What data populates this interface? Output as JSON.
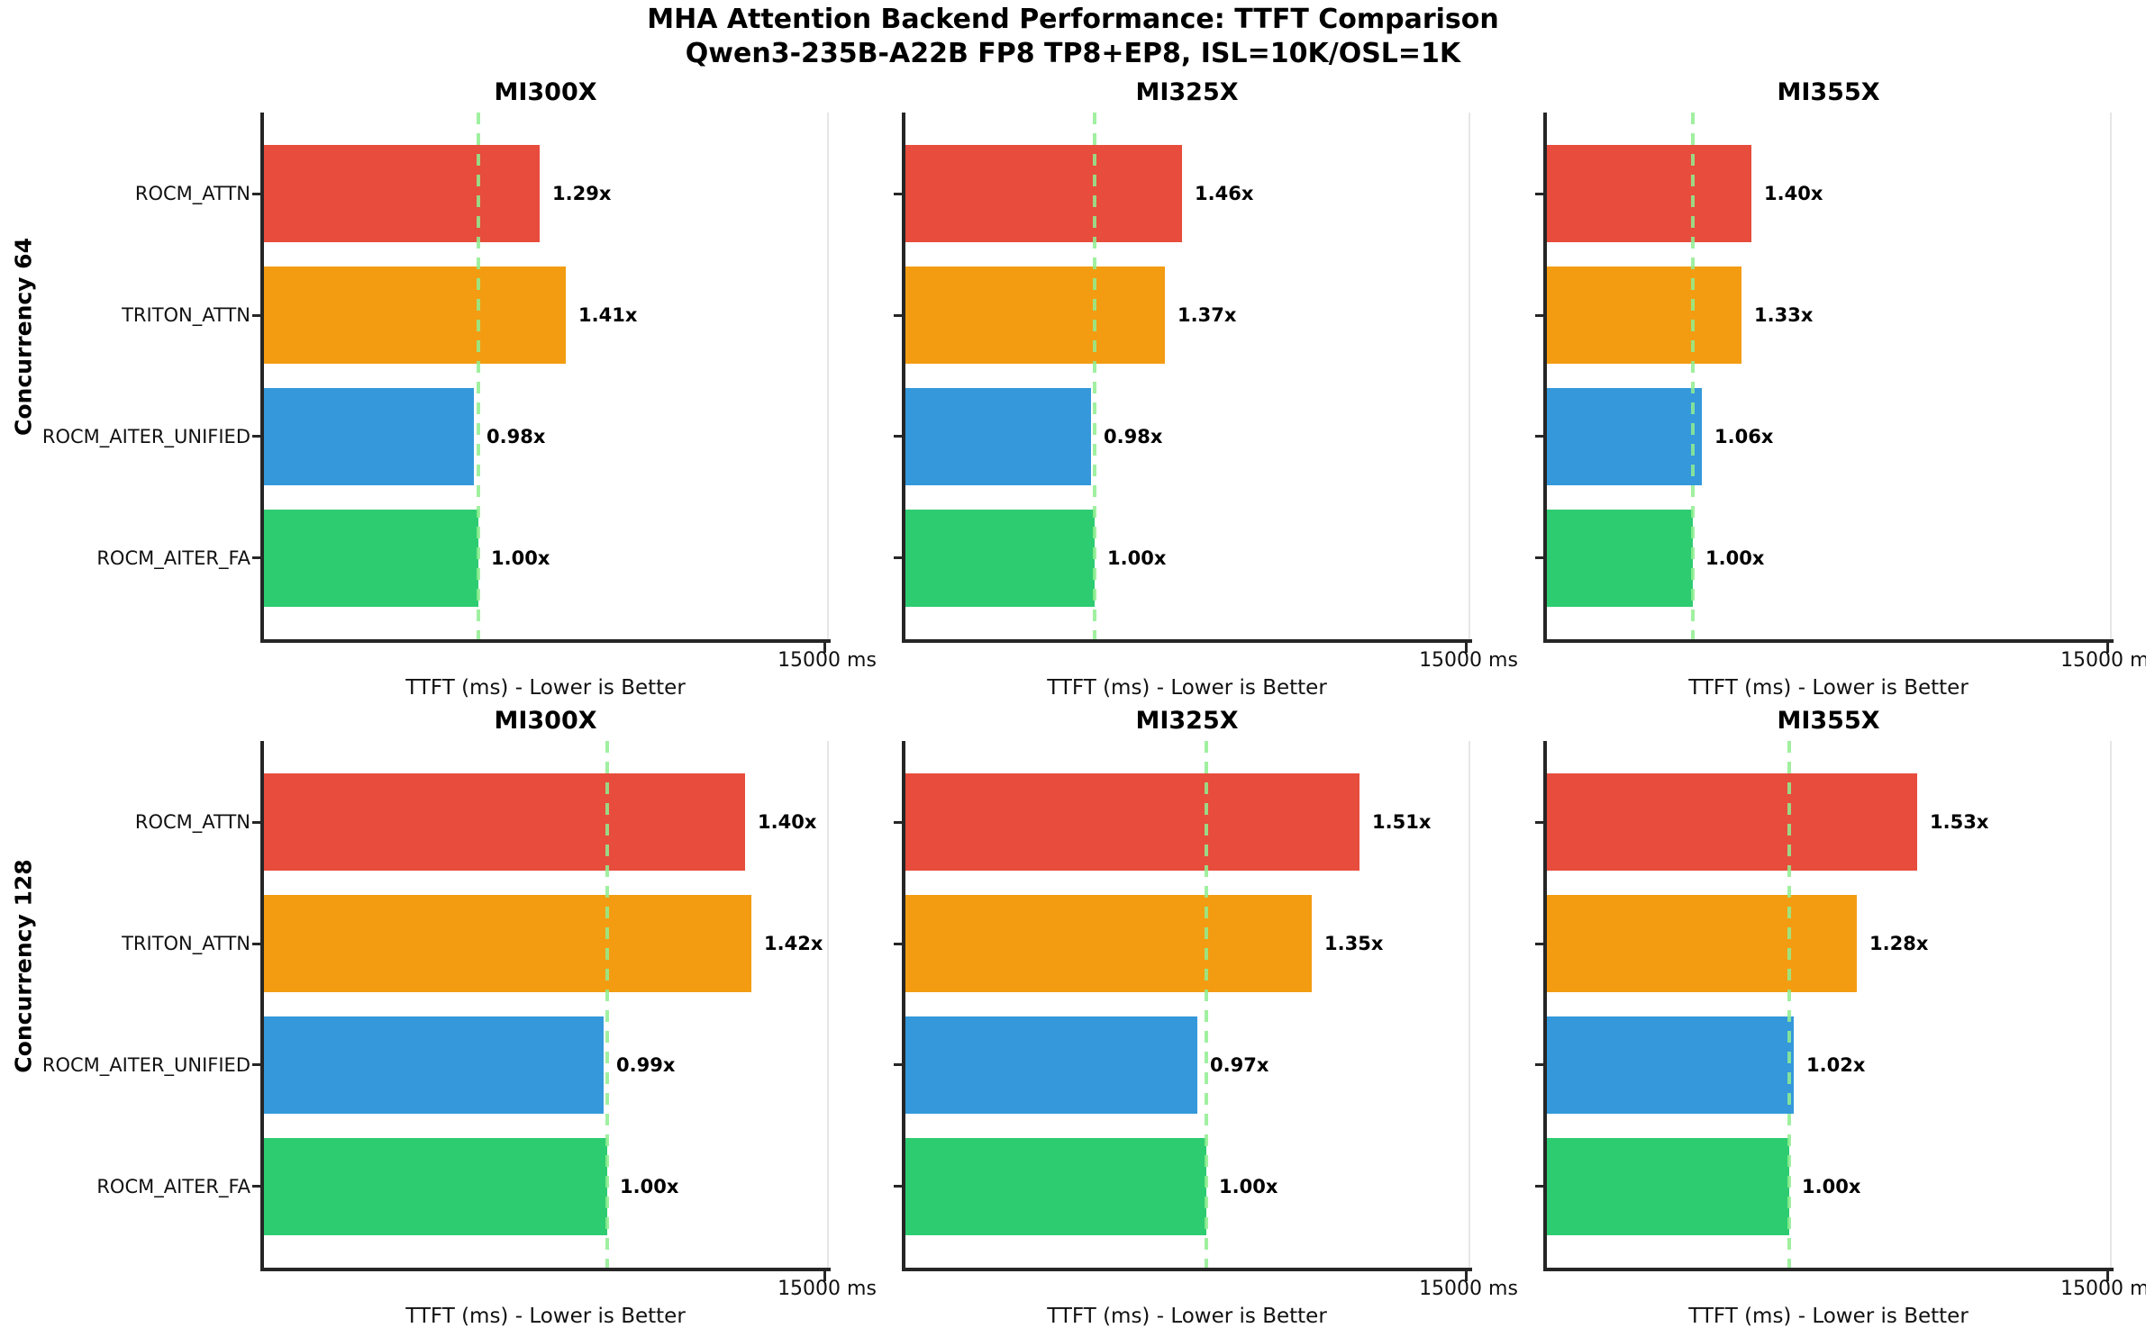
{
  "chart_data": {
    "type": "bar",
    "orientation": "horizontal",
    "title": "MHA Attention Backend Performance: TTFT Comparison",
    "subtitle": "Qwen3-235B-A22B FP8 TP8+EP8, ISL=10K/OSL=1K",
    "categories": [
      "ROCM_ATTN",
      "TRITON_ATTN",
      "ROCM_AITER_UNIFIED",
      "ROCM_AITER_FA"
    ],
    "bar_colors": [
      "#e74c3c",
      "#f39c12",
      "#3498db",
      "#2ecc71"
    ],
    "baseline_line_color": "#90ee90",
    "spine_color": "#262626",
    "xlabel": "TTFT (ms) - Lower is Better",
    "x_tick_label": "15000 ms",
    "xlim": [
      0,
      15000
    ],
    "grid": false,
    "legend": "none",
    "rows": [
      {
        "row_label": "Concurrency 64",
        "subplots": [
          {
            "title": "MI300X",
            "speedup_labels": [
              "1.29x",
              "1.41x",
              "0.98x",
              "1.00x"
            ],
            "speedups": [
              1.29,
              1.41,
              0.98,
              1.0
            ],
            "baseline_ttft_ms_est": 5700,
            "ttft_ms_est": [
              7350,
              8040,
              5590,
              5700
            ]
          },
          {
            "title": "MI325X",
            "speedup_labels": [
              "1.46x",
              "1.37x",
              "0.98x",
              "1.00x"
            ],
            "speedups": [
              1.46,
              1.37,
              0.98,
              1.0
            ],
            "baseline_ttft_ms_est": 5040,
            "ttft_ms_est": [
              7360,
              6900,
              4940,
              5040
            ]
          },
          {
            "title": "MI355X",
            "speedup_labels": [
              "1.40x",
              "1.33x",
              "1.06x",
              "1.00x"
            ],
            "speedups": [
              1.4,
              1.33,
              1.06,
              1.0
            ],
            "baseline_ttft_ms_est": 3890,
            "ttft_ms_est": [
              5440,
              5170,
              4120,
              3890
            ]
          }
        ]
      },
      {
        "row_label": "Concurrency 128",
        "subplots": [
          {
            "title": "MI300X",
            "speedup_labels": [
              "1.40x",
              "1.42x",
              "0.99x",
              "1.00x"
            ],
            "speedups": [
              1.4,
              1.42,
              0.99,
              1.0
            ],
            "baseline_ttft_ms_est": 9150,
            "ttft_ms_est": [
              12810,
              12990,
              9060,
              9150
            ]
          },
          {
            "title": "MI325X",
            "speedup_labels": [
              "1.51x",
              "1.35x",
              "0.97x",
              "1.00x"
            ],
            "speedups": [
              1.51,
              1.35,
              0.97,
              1.0
            ],
            "baseline_ttft_ms_est": 8010,
            "ttft_ms_est": [
              12100,
              10810,
              7770,
              8010
            ]
          },
          {
            "title": "MI355X",
            "speedup_labels": [
              "1.53x",
              "1.28x",
              "1.02x",
              "1.00x"
            ],
            "speedups": [
              1.53,
              1.28,
              1.02,
              1.0
            ],
            "baseline_ttft_ms_est": 6450,
            "ttft_ms_est": [
              9870,
              8260,
              6580,
              6450
            ]
          }
        ]
      }
    ]
  }
}
